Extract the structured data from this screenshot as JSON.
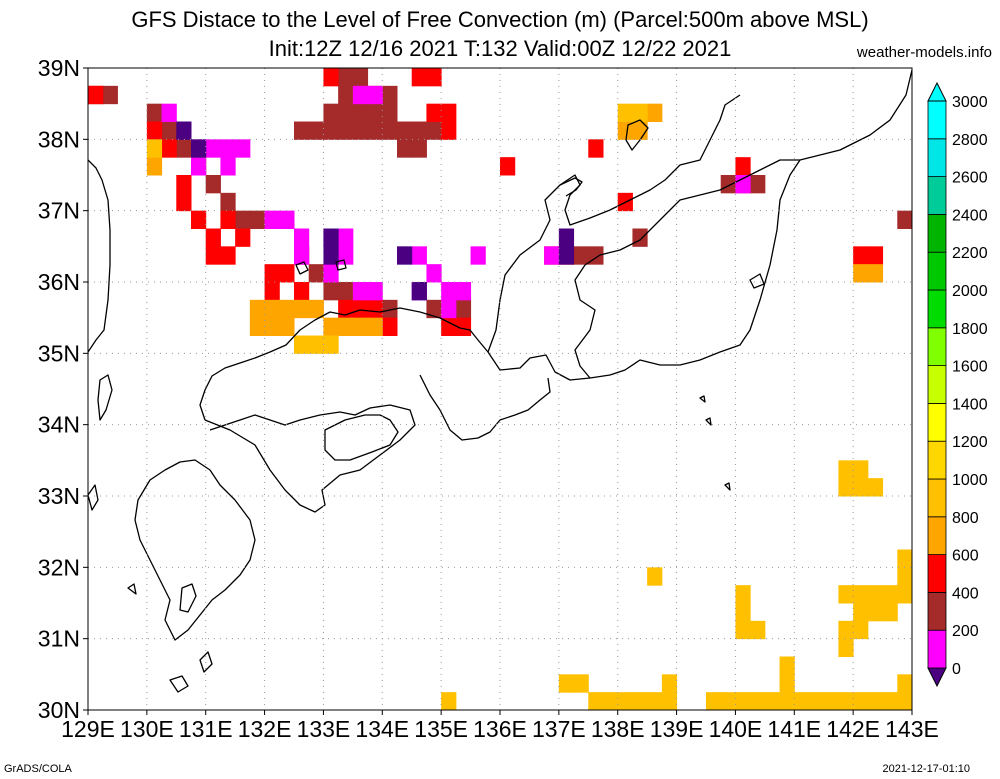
{
  "title": {
    "line1": "GFS Distace to the Level of Free Convection (m) (Parcel:500m above MSL)",
    "line2": "Init:12Z 12/16 2021 T:132 Valid:00Z 12/22 2021"
  },
  "credit": "weather-models.info",
  "footer": {
    "left": "GrADS/COLA",
    "right": "2021-12-17-01:10"
  },
  "map": {
    "lon_range": [
      129,
      143
    ],
    "lat_range": [
      30,
      39
    ],
    "lon_labels": [
      "129E",
      "130E",
      "131E",
      "132E",
      "133E",
      "134E",
      "135E",
      "136E",
      "137E",
      "138E",
      "139E",
      "140E",
      "141E",
      "142E",
      "143E"
    ],
    "lat_labels": [
      "30N",
      "31N",
      "32N",
      "33N",
      "34N",
      "35N",
      "36N",
      "37N",
      "38N",
      "39N"
    ],
    "grid": "dotted",
    "cell_deg": 0.25
  },
  "colorbar": {
    "levels": [
      "0",
      "200",
      "400",
      "600",
      "800",
      "1000",
      "1200",
      "1400",
      "1600",
      "1800",
      "2000",
      "2200",
      "2400",
      "2600",
      "2800",
      "3000"
    ],
    "colors": [
      "#4b0082",
      "#ff00ff",
      "#a52a2a",
      "#ff0000",
      "#ffa500",
      "#ffc000",
      "#ffd700",
      "#ffff00",
      "#c8ff00",
      "#80ff00",
      "#00dc00",
      "#00c800",
      "#00b400",
      "#00cc99",
      "#00e5e5",
      "#00ffff"
    ]
  },
  "fields": [
    {
      "level": "400",
      "color": "#a52a2a",
      "cells": [
        [
          129,
          38.5
        ],
        [
          129.25,
          38.5
        ],
        [
          132.5,
          38
        ],
        [
          132.75,
          38
        ],
        [
          133,
          38
        ],
        [
          133.25,
          38
        ],
        [
          133.5,
          38
        ],
        [
          133.75,
          38
        ],
        [
          134,
          38
        ],
        [
          133,
          38.25
        ],
        [
          133.25,
          38.25
        ],
        [
          133.5,
          38.25
        ],
        [
          133.75,
          38.25
        ],
        [
          134,
          38.25
        ],
        [
          133.25,
          38.5
        ],
        [
          133.5,
          38.5
        ],
        [
          133.75,
          38.5
        ],
        [
          134,
          38.5
        ],
        [
          133.25,
          38.75
        ],
        [
          133.5,
          38.75
        ],
        [
          134.25,
          38
        ],
        [
          134.5,
          38
        ],
        [
          134.75,
          38
        ],
        [
          134.25,
          37.75
        ],
        [
          134.5,
          37.75
        ],
        [
          130,
          38.25
        ],
        [
          130.25,
          38
        ],
        [
          130.5,
          37.75
        ],
        [
          130.75,
          37.5
        ],
        [
          131,
          37.25
        ],
        [
          131.25,
          37
        ],
        [
          131.5,
          36.75
        ],
        [
          131.75,
          36.75
        ],
        [
          132.5,
          36.25
        ],
        [
          132.75,
          36
        ],
        [
          133,
          35.75
        ],
        [
          133.25,
          35.75
        ],
        [
          133.5,
          35.75
        ],
        [
          134,
          35.5
        ],
        [
          134.75,
          35.5
        ],
        [
          135,
          35.5
        ],
        [
          135.25,
          35.5
        ],
        [
          139.75,
          37.25
        ],
        [
          140,
          37.25
        ],
        [
          140.25,
          37.25
        ],
        [
          142.75,
          36.75
        ],
        [
          137.25,
          36.25
        ],
        [
          137.5,
          36.25
        ],
        [
          138.25,
          36.5
        ]
      ]
    },
    {
      "level": "600",
      "color": "#ff0000",
      "cells": [
        [
          129,
          38.5
        ],
        [
          130,
          38
        ],
        [
          130.25,
          37.75
        ],
        [
          130.5,
          37
        ],
        [
          130.75,
          36.75
        ],
        [
          131,
          36.5
        ],
        [
          131,
          36.25
        ],
        [
          131.25,
          36.25
        ],
        [
          131.5,
          36.5
        ],
        [
          131.25,
          36.75
        ],
        [
          130.5,
          37.25
        ],
        [
          132,
          36
        ],
        [
          132.25,
          36
        ],
        [
          132.5,
          35.75
        ],
        [
          132,
          35.75
        ],
        [
          133.25,
          35.5
        ],
        [
          133.5,
          35.5
        ],
        [
          133.75,
          35.5
        ],
        [
          134,
          35.25
        ],
        [
          135,
          35.25
        ],
        [
          135.25,
          35.25
        ],
        [
          134.75,
          38.25
        ],
        [
          135,
          38
        ],
        [
          135,
          38.25
        ],
        [
          134.5,
          38.75
        ],
        [
          134.75,
          38.75
        ],
        [
          133,
          38.75
        ],
        [
          136,
          37.5
        ],
        [
          137.5,
          37.75
        ],
        [
          138,
          37
        ],
        [
          140,
          37.5
        ],
        [
          142,
          36.25
        ],
        [
          142.25,
          36.25
        ],
        [
          136.75,
          36.25
        ],
        [
          137,
          36.25
        ]
      ]
    },
    {
      "level": "200",
      "color": "#ff00ff",
      "cells": [
        [
          130.25,
          38.25
        ],
        [
          130.75,
          37.75
        ],
        [
          131,
          37.75
        ],
        [
          131.25,
          37.75
        ],
        [
          131.5,
          37.75
        ],
        [
          130.75,
          37.5
        ],
        [
          131.25,
          37.5
        ],
        [
          132,
          36.75
        ],
        [
          132.25,
          36.75
        ],
        [
          132.5,
          36.5
        ],
        [
          133,
          36.5
        ],
        [
          133.25,
          36.5
        ],
        [
          132.5,
          36.25
        ],
        [
          133.25,
          36.25
        ],
        [
          133,
          36
        ],
        [
          133.5,
          35.75
        ],
        [
          133.75,
          35.75
        ],
        [
          134.5,
          36.25
        ],
        [
          134.75,
          36
        ],
        [
          135,
          35.75
        ],
        [
          135.25,
          35.75
        ],
        [
          135,
          35.5
        ],
        [
          134.5,
          35.75
        ],
        [
          135.5,
          36.25
        ],
        [
          133.5,
          38.5
        ],
        [
          133.75,
          38.5
        ],
        [
          136.75,
          36.25
        ],
        [
          140,
          37.25
        ]
      ]
    },
    {
      "level": "0",
      "color": "#4b0082",
      "cells": [
        [
          130.5,
          38
        ],
        [
          130.75,
          37.75
        ],
        [
          133,
          36.5
        ],
        [
          133,
          36.25
        ],
        [
          134.25,
          36.25
        ],
        [
          134.5,
          35.75
        ],
        [
          137,
          36.5
        ],
        [
          137,
          36.25
        ]
      ]
    },
    {
      "level": "800",
      "color": "#ffa500",
      "cells": [
        [
          131.75,
          35.5
        ],
        [
          132,
          35.5
        ],
        [
          132.25,
          35.5
        ],
        [
          132.5,
          35.5
        ],
        [
          132.75,
          35.5
        ],
        [
          133,
          35.25
        ],
        [
          133.25,
          35.25
        ],
        [
          133.5,
          35.25
        ],
        [
          133.75,
          35.25
        ],
        [
          130,
          37.5
        ],
        [
          138,
          38
        ],
        [
          138.25,
          38
        ],
        [
          138.5,
          38.25
        ],
        [
          142,
          36
        ],
        [
          142.25,
          36
        ],
        [
          131.75,
          35.25
        ],
        [
          132,
          35.25
        ],
        [
          132.25,
          35.25
        ]
      ]
    },
    {
      "level": "1000",
      "color": "#ffc000",
      "cells": [
        [
          132.5,
          35
        ],
        [
          132.75,
          35
        ],
        [
          133,
          35
        ],
        [
          138.25,
          38.25
        ],
        [
          138,
          38.25
        ],
        [
          130,
          37.75
        ],
        [
          141.75,
          33
        ],
        [
          142,
          33.25
        ],
        [
          142,
          33
        ],
        [
          142.25,
          33
        ],
        [
          141.75,
          33.25
        ],
        [
          143,
          32
        ],
        [
          142.75,
          32
        ],
        [
          142.75,
          31.75
        ],
        [
          142.75,
          31.5
        ],
        [
          142.5,
          31.5
        ],
        [
          142.25,
          31.5
        ],
        [
          142,
          31.5
        ],
        [
          141.75,
          31.5
        ],
        [
          142,
          31.25
        ],
        [
          142.25,
          31.25
        ],
        [
          142.5,
          31.25
        ],
        [
          142,
          31
        ],
        [
          141.75,
          31
        ],
        [
          141.75,
          30.75
        ],
        [
          140,
          31.25
        ],
        [
          140,
          31.5
        ],
        [
          140.25,
          31
        ],
        [
          140,
          31
        ],
        [
          139.5,
          30
        ],
        [
          139.75,
          30
        ],
        [
          140,
          30
        ],
        [
          140.25,
          30
        ],
        [
          140.5,
          30
        ],
        [
          140.75,
          30
        ],
        [
          141,
          30
        ],
        [
          141.25,
          30
        ],
        [
          141.5,
          30
        ],
        [
          141.75,
          30
        ],
        [
          142,
          30
        ],
        [
          142.25,
          30
        ],
        [
          142.5,
          30
        ],
        [
          142.75,
          30
        ],
        [
          143,
          30
        ],
        [
          140.75,
          30.25
        ],
        [
          140.75,
          30.5
        ],
        [
          142.75,
          30.25
        ],
        [
          138.5,
          30
        ],
        [
          138.25,
          30
        ],
        [
          138,
          30
        ],
        [
          137.75,
          30
        ],
        [
          137.5,
          30
        ],
        [
          138.75,
          30
        ],
        [
          138.75,
          30.25
        ],
        [
          137,
          30.25
        ],
        [
          137.25,
          30.25
        ],
        [
          138.5,
          31.75
        ],
        [
          135,
          30
        ],
        [
          143,
          31.75
        ],
        [
          143,
          31.5
        ],
        [
          143,
          31.25
        ]
      ]
    }
  ]
}
